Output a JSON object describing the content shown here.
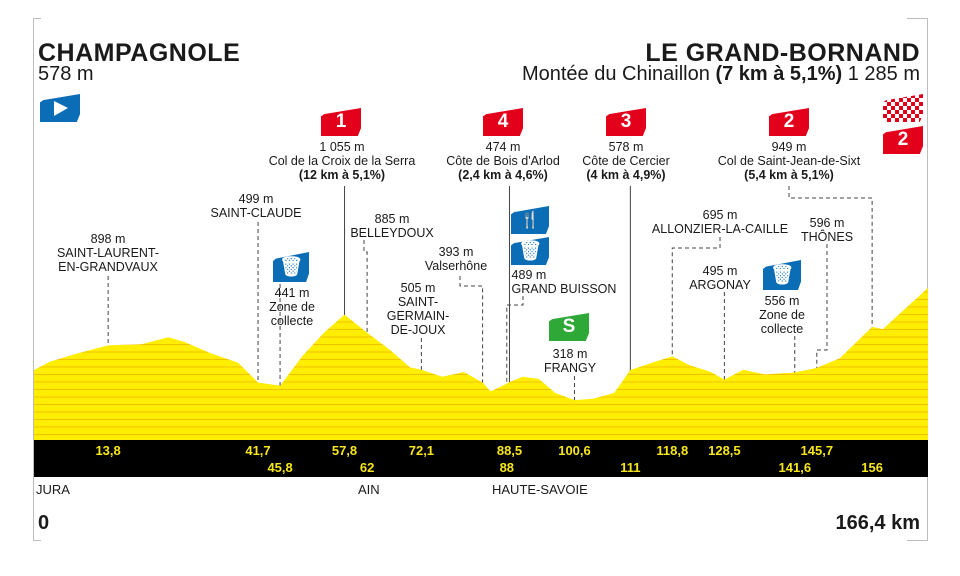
{
  "start": {
    "name": "CHAMPAGNOLE",
    "altitude": "578 m"
  },
  "finish": {
    "name": "LE GRAND-BORNAND",
    "climb_name": "Montée du Chinaillon",
    "climb_detail": "(7 km à 5,1%)",
    "altitude": "1 285 m",
    "category": "2"
  },
  "colors": {
    "profile": "#ffee00",
    "stripe": "#f2c200",
    "bar": "#000000",
    "km_text": "#f6e61a",
    "climb_badge": "#e2001a",
    "service_badge": "#0b6db5",
    "sprint_badge": "#2ea836"
  },
  "icons": {
    "start": "play-flag-icon",
    "finish": "checkered-flag-icon",
    "feed": "fork-knife-icon",
    "waste": "bin-icon",
    "sprint": "sprint-icon"
  },
  "climbs": [
    {
      "category": "1",
      "altitude": "1 055 m",
      "name": "Col de la Croix de la Serra",
      "detail": "(12 km à 5,1%)"
    },
    {
      "category": "4",
      "altitude": "474 m",
      "name": "Côte de Bois d'Arlod",
      "detail": "(2,4 km à 4,6%)"
    },
    {
      "category": "3",
      "altitude": "578 m",
      "name": "Côte de Cercier",
      "detail": "(4 km à 4,9%)"
    },
    {
      "category": "2",
      "altitude": "949 m",
      "name": "Col de Saint-Jean-de-Sixt",
      "detail": "(5,4 km à 5,1%)"
    }
  ],
  "places": {
    "saint_laurent": {
      "altitude": "898 m",
      "line1": "SAINT-LAURENT-",
      "line2": "EN-GRANDVAUX"
    },
    "saint_claude": {
      "altitude": "499 m",
      "name": "SAINT-CLAUDE"
    },
    "collecte1": {
      "altitude": "441 m",
      "line1": "Zone de",
      "line2": "collecte"
    },
    "belleydoux": {
      "altitude": "885 m",
      "name": "BELLEYDOUX"
    },
    "saint_germain": {
      "altitude": "505 m",
      "line1": "SAINT-",
      "line2": "GERMAIN-",
      "line3": "DE-JOUX"
    },
    "valserhone": {
      "altitude": "393 m",
      "name": "Valserhône"
    },
    "grand_buisson": {
      "altitude": "489 m",
      "name": "GRAND BUISSON"
    },
    "frangy": {
      "altitude": "318 m",
      "name": "FRANGY",
      "sprint": "S"
    },
    "allonzier": {
      "altitude": "695 m",
      "name": "ALLONZIER-LA-CAILLE"
    },
    "argonay": {
      "altitude": "495 m",
      "name": "ARGONAY"
    },
    "collecte2": {
      "altitude": "556 m",
      "line1": "Zone de",
      "line2": "collecte"
    },
    "thones": {
      "altitude": "596 m",
      "name": "THÔNES"
    }
  },
  "departments": [
    "JURA",
    "AIN",
    "HAUTE-SAVOIE"
  ],
  "distance": {
    "start": "0",
    "end": "166,4 km"
  },
  "chart_data": {
    "type": "area",
    "xlabel": "",
    "ylabel": "",
    "xlim": [
      0,
      166.4
    ],
    "ylim_m": [
      0,
      1300
    ],
    "grid": false,
    "profile_km": [
      0,
      3,
      8,
      13.8,
      20,
      25,
      28,
      33,
      38,
      41.7,
      45.8,
      50,
      54,
      57.8,
      62,
      66,
      70,
      72.1,
      76,
      80,
      83.5,
      85,
      88,
      88.5,
      91,
      94,
      97,
      100.6,
      104,
      108,
      111,
      115,
      118.8,
      122,
      126,
      128.5,
      132,
      136,
      141.6,
      145.7,
      150,
      154,
      156,
      158,
      162,
      166.4
    ],
    "profile_m": [
      578,
      650,
      720,
      790,
      800,
      860,
      820,
      720,
      640,
      470,
      441,
      700,
      900,
      1055,
      900,
      760,
      600,
      580,
      520,
      560,
      470,
      393,
      460,
      474,
      520,
      500,
      380,
      318,
      330,
      380,
      578,
      640,
      695,
      620,
      560,
      495,
      580,
      540,
      556,
      596,
      680,
      860,
      949,
      930,
      1100,
      1285
    ],
    "km_markers_top": [
      "13,8",
      "41,7",
      "57,8",
      "72,1",
      "88,5",
      "100,6",
      "118,8",
      "128,5",
      "145,7"
    ],
    "km_markers_top_values": [
      13.8,
      41.7,
      57.8,
      72.1,
      88.5,
      100.6,
      118.8,
      128.5,
      145.7
    ],
    "km_markers_bottom": [
      "45,8",
      "62",
      "88",
      "111",
      "141,6",
      "156"
    ],
    "km_markers_bottom_values": [
      45.8,
      62,
      88,
      111,
      141.6,
      156
    ]
  }
}
